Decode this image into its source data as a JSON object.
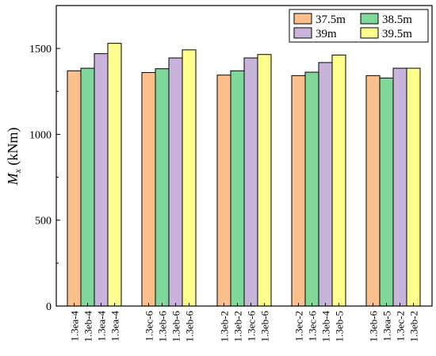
{
  "chart_data": {
    "type": "bar",
    "ylabel_main": "M",
    "ylabel_sub": "x",
    "ylabel_unit": " (kNm)",
    "ylim": [
      0,
      1750
    ],
    "yticks": [
      0,
      500,
      1000,
      1500
    ],
    "grid": false,
    "legend_position": "top-right",
    "series": [
      {
        "name": "37.5m",
        "color": "#FDC08D"
      },
      {
        "name": "38.5m",
        "color": "#7FD89A"
      },
      {
        "name": "39m",
        "color": "#C8B4DB"
      },
      {
        "name": "39.5m",
        "color": "#FFFF8D"
      }
    ],
    "groups": [
      {
        "labels": [
          "1.3ea-4",
          "1.3eb-4",
          "1.3ea-4",
          "1.3ea-4"
        ],
        "values": [
          1370,
          1385,
          1470,
          1530
        ]
      },
      {
        "labels": [
          "1.3ec-6",
          "1.3eb-6",
          "1.3eb-6",
          "1.3eb-6"
        ],
        "values": [
          1360,
          1382,
          1445,
          1492
        ]
      },
      {
        "labels": [
          "1.3eb-2",
          "1.3eb-2",
          "1.3ec-6",
          "1.3eb-6"
        ],
        "values": [
          1345,
          1370,
          1445,
          1465
        ]
      },
      {
        "labels": [
          "1.3ec-2",
          "1.3ec-6",
          "1.3eb-4",
          "1.3eb-5"
        ],
        "values": [
          1342,
          1362,
          1418,
          1462
        ]
      },
      {
        "labels": [
          "1.3eb-6",
          "1.3ea-5",
          "1.3ec-2",
          "1.3eb-2"
        ],
        "values": [
          1342,
          1328,
          1385,
          1385
        ]
      }
    ]
  }
}
